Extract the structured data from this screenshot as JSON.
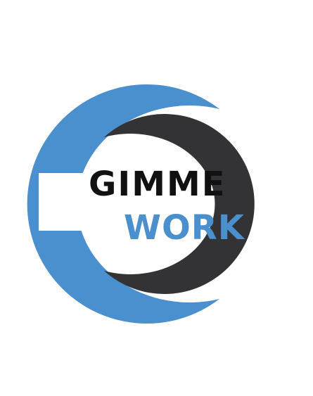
{
  "logo": {
    "line1": "GIMME",
    "line2": "WORK",
    "colors": {
      "line1": "#111111",
      "line2": "#4a8fce",
      "outer_ring": "#4a8fce",
      "inner_ring": "#333336",
      "background": "#ffffff"
    }
  }
}
